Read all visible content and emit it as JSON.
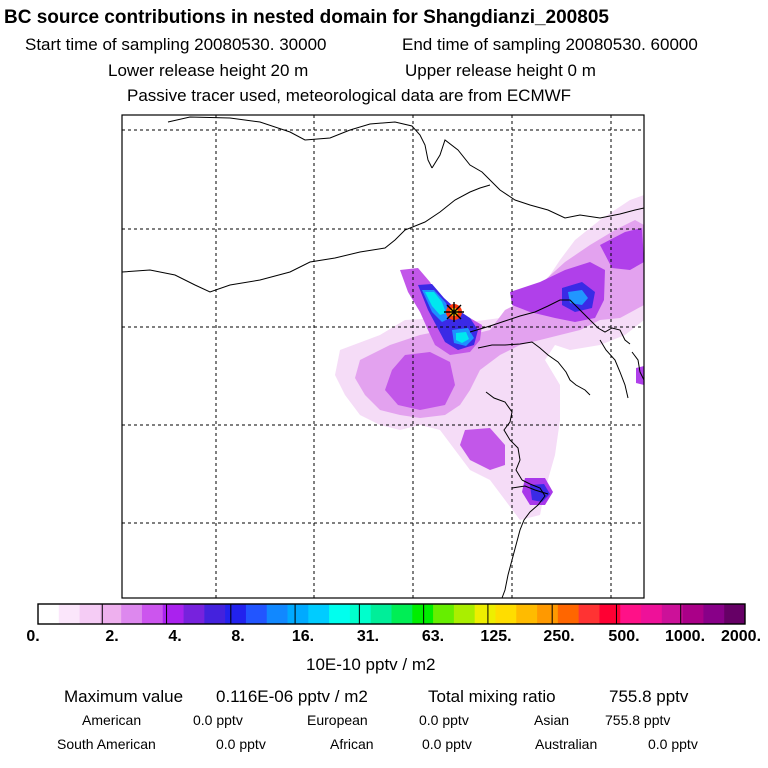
{
  "header": {
    "title": "BC  source contributions in nested domain for Shangdianzi_200805",
    "start_label": "Start time of sampling 20080530. 30000",
    "end_label": "End time of sampling 20080530. 60000",
    "lower_label": "Lower release height   20 m",
    "upper_label": "Upper release height    0 m",
    "tracer_note": "Passive tracer used, meteorological data are from ECMWF"
  },
  "colorbar": {
    "colors": [
      "#ffffff",
      "#fbe6fb",
      "#f5ccf5",
      "#eeb0ee",
      "#dd88ee",
      "#cc55ee",
      "#aa22ee",
      "#7722dd",
      "#4422dd",
      "#2222ee",
      "#2255ff",
      "#1188ff",
      "#00aaff",
      "#00ccff",
      "#00ffee",
      "#00ffcc",
      "#00ee99",
      "#00ee55",
      "#00ee00",
      "#66ee00",
      "#aaee00",
      "#eeee00",
      "#ffdd00",
      "#ffbb00",
      "#ff9900",
      "#ff6600",
      "#ff3333",
      "#ff0033",
      "#ff1188",
      "#ee1199",
      "#cc1199",
      "#aa0088",
      "#880088",
      "#660066"
    ],
    "tick_labels": [
      "0.",
      "2.",
      "4.",
      "8.",
      "16.",
      "31.",
      "63.",
      "125.",
      "250.",
      "500.",
      "1000.",
      "2000."
    ],
    "unit_label": "10E-10 pptv / m2"
  },
  "summary": {
    "max_label": "Maximum value",
    "max_value": "0.116E-06 pptv / m2",
    "total_label": "Total mixing ratio",
    "total_value": "755.8 pptv",
    "regions": [
      {
        "name": "American",
        "value": "0.0 pptv"
      },
      {
        "name": "European",
        "value": "0.0 pptv"
      },
      {
        "name": "Asian",
        "value": "755.8 pptv"
      },
      {
        "name": "South American",
        "value": "0.0 pptv"
      },
      {
        "name": "African",
        "value": "0.0 pptv"
      },
      {
        "name": "Australian",
        "value": "0.0 pptv"
      }
    ]
  },
  "map": {
    "station_marker": "asterisk",
    "plume_colors": {
      "light": "#f3d3f5",
      "mid": "#e6a6f0",
      "purple": "#c05ae8",
      "violet": "#a030e8",
      "blue": "#4020e0",
      "azure": "#1e90ff",
      "cyan": "#00e5ee"
    }
  }
}
